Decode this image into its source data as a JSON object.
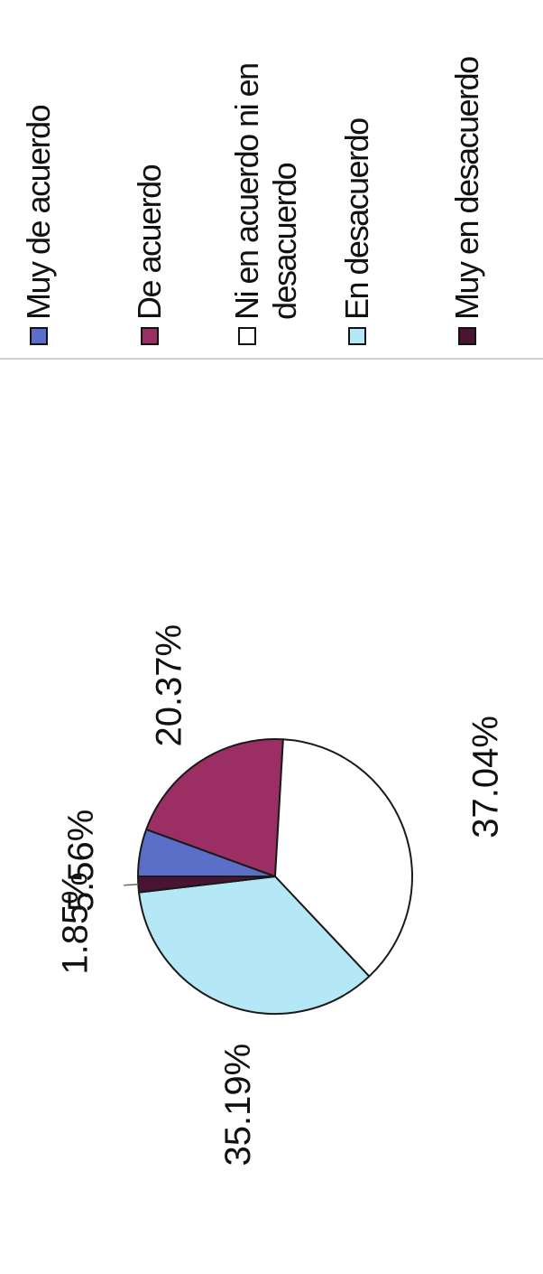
{
  "chart_data": {
    "type": "pie",
    "slices": [
      {
        "label": "Muy de acuerdo",
        "value": 5.56,
        "value_label": "5.56%",
        "color": "#5b6fc9"
      },
      {
        "label": "De acuerdo",
        "value": 20.37,
        "value_label": "20.37%",
        "color": "#9b2f63"
      },
      {
        "label": "Ni en acuerdo ni en desacuerdo",
        "value": 37.04,
        "value_label": "37.04%",
        "color": "#ffffff"
      },
      {
        "label": "En desacuerdo",
        "value": 35.19,
        "value_label": "35.19%",
        "color": "#b5e8f7"
      },
      {
        "label": "Muy en desacuerdo",
        "value": 1.85,
        "value_label": "1.85%",
        "color": "#4a1433"
      }
    ],
    "legend": {
      "placement": "right",
      "items": [
        {
          "label": "Muy de acuerdo",
          "color": "#5b6fc9"
        },
        {
          "label": "De acuerdo",
          "color": "#9b2f63"
        },
        {
          "label": "Ni en acuerdo ni en desacuerdo",
          "color": "#ffffff"
        },
        {
          "label": "En desacuerdo",
          "color": "#b5e8f7"
        },
        {
          "label": "Muy en desacuerdo",
          "color": "#4a1433"
        }
      ]
    },
    "orientation": "rotated 90° counter-clockwise"
  }
}
